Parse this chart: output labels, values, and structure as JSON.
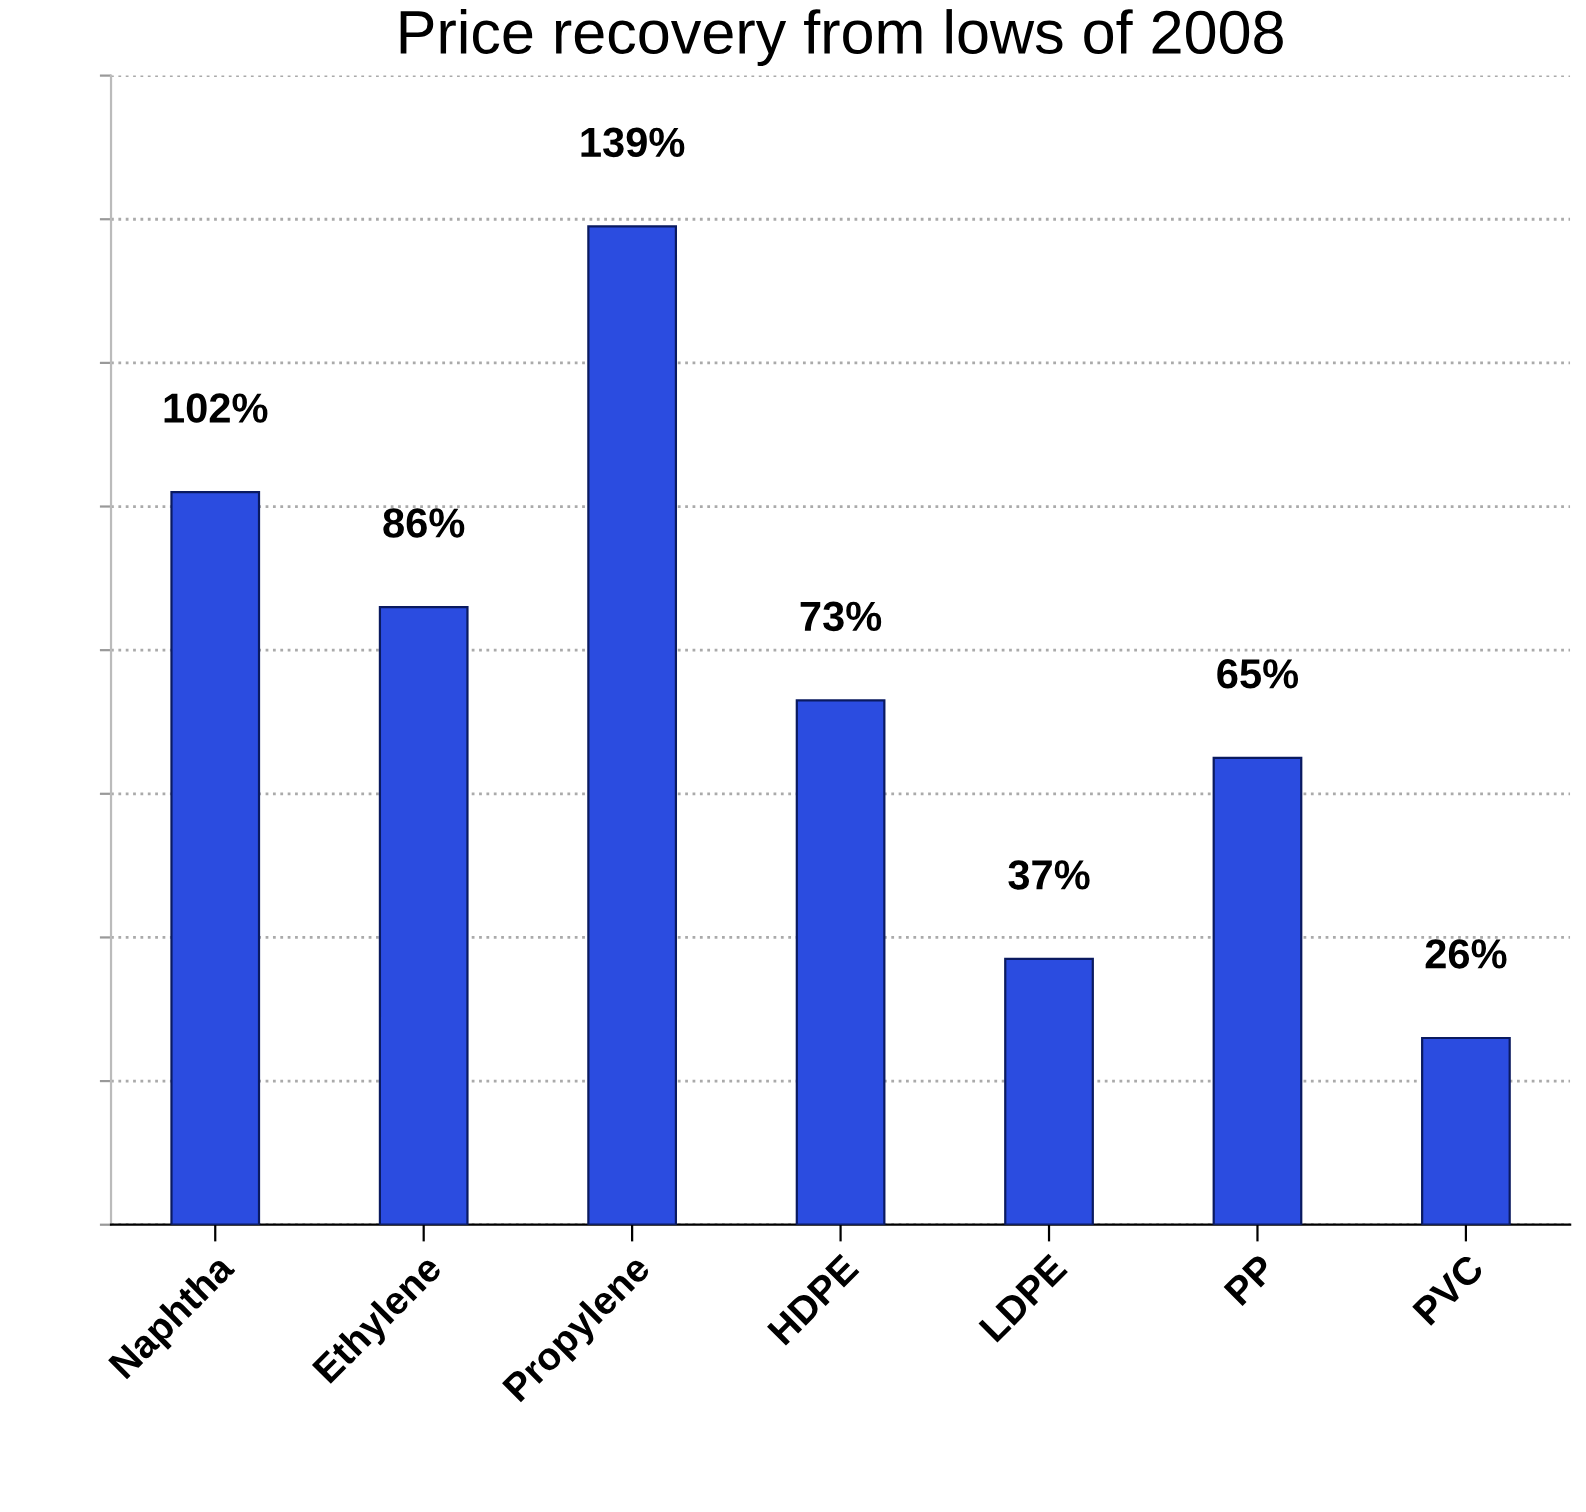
{
  "chart_data": {
    "type": "bar",
    "title": "Price recovery from lows of 2008",
    "categories": [
      "Naphtha",
      "Ethylene",
      "Propylene",
      "HDPE",
      "LDPE",
      "PP",
      "PVC"
    ],
    "values": [
      102,
      86,
      139,
      73,
      37,
      65,
      26
    ],
    "value_labels": [
      "102%",
      "86%",
      "139%",
      "73%",
      "37%",
      "65%",
      "26%"
    ],
    "color": "#2b4ce0",
    "ylim": [
      0,
      160
    ],
    "yticks": [
      {
        "value": 0,
        "label": null
      },
      {
        "value": 20,
        "label": null
      },
      {
        "value": 40,
        "label": null
      },
      {
        "value": 60,
        "label": null
      },
      {
        "value": 80,
        "label": null
      },
      {
        "value": 100,
        "label": null
      },
      {
        "value": 120,
        "label": null
      },
      {
        "value": 140,
        "label": null
      },
      {
        "value": 160,
        "label": null
      }
    ],
    "grid": "y",
    "tick_labels": "x"
  }
}
